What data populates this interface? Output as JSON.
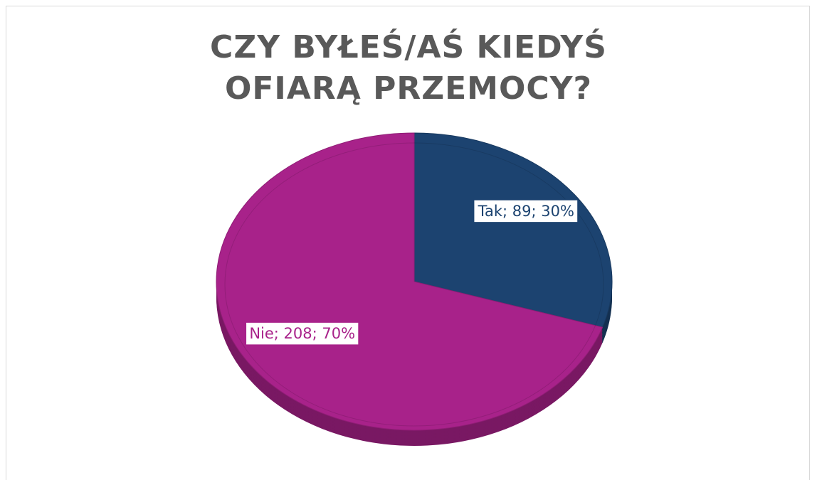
{
  "chart_data": {
    "type": "pie",
    "title": "CZY BYŁEŚ/AŚ KIEDYŚ OFIARĄ PRZEMOCY?",
    "values": [
      89,
      208
    ],
    "value_labels": [
      "Tak; 89; 30%",
      "Nie; 208; 70%"
    ],
    "colors": [
      "#1c4370",
      "#a8228a"
    ]
  }
}
